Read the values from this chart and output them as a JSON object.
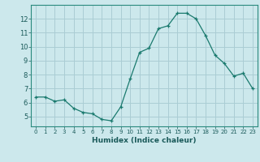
{
  "x": [
    0,
    1,
    2,
    3,
    4,
    5,
    6,
    7,
    8,
    9,
    10,
    11,
    12,
    13,
    14,
    15,
    16,
    17,
    18,
    19,
    20,
    21,
    22,
    23
  ],
  "y": [
    6.4,
    6.4,
    6.1,
    6.2,
    5.6,
    5.3,
    5.2,
    4.8,
    4.7,
    5.7,
    7.7,
    9.6,
    9.9,
    11.3,
    11.5,
    12.4,
    12.4,
    12.0,
    10.8,
    9.4,
    8.8,
    7.9,
    8.1,
    7.0
  ],
  "xlabel": "Humidex (Indice chaleur)",
  "bg_color": "#cce8ec",
  "grid_color": "#aacdd4",
  "line_color": "#1a7a6e",
  "marker_color": "#1a7a6e",
  "ylim": [
    4.3,
    13.0
  ],
  "xlim": [
    -0.5,
    23.5
  ],
  "yticks": [
    5,
    6,
    7,
    8,
    9,
    10,
    11,
    12
  ],
  "xticks": [
    0,
    1,
    2,
    3,
    4,
    5,
    6,
    7,
    8,
    9,
    10,
    11,
    12,
    13,
    14,
    15,
    16,
    17,
    18,
    19,
    20,
    21,
    22,
    23
  ]
}
